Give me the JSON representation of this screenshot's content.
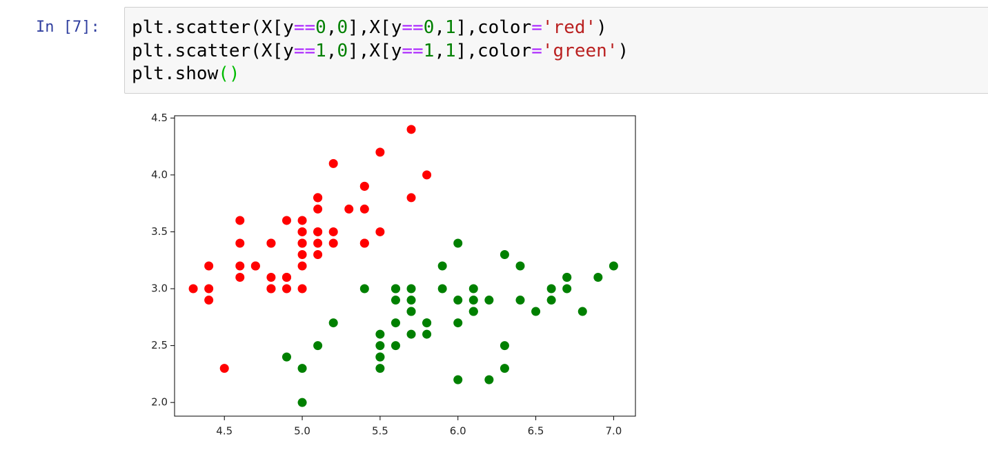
{
  "notebook": {
    "prompt": "In [7]:",
    "code": [
      [
        {
          "text": "plt.scatter(X[y",
          "color": "#000000"
        },
        {
          "text": "==",
          "color": "#aa22ff"
        },
        {
          "text": "0",
          "color": "#008000"
        },
        {
          "text": ",",
          "color": "#000000"
        },
        {
          "text": "0",
          "color": "#008000"
        },
        {
          "text": "],X[y",
          "color": "#000000"
        },
        {
          "text": "==",
          "color": "#aa22ff"
        },
        {
          "text": "0",
          "color": "#008000"
        },
        {
          "text": ",",
          "color": "#000000"
        },
        {
          "text": "1",
          "color": "#008000"
        },
        {
          "text": "],color",
          "color": "#000000"
        },
        {
          "text": "=",
          "color": "#aa22ff"
        },
        {
          "text": "'red'",
          "color": "#ba2121"
        },
        {
          "text": ")",
          "color": "#000000"
        }
      ],
      [
        {
          "text": "plt.scatter(X[y",
          "color": "#000000"
        },
        {
          "text": "==",
          "color": "#aa22ff"
        },
        {
          "text": "1",
          "color": "#008000"
        },
        {
          "text": ",",
          "color": "#000000"
        },
        {
          "text": "0",
          "color": "#008000"
        },
        {
          "text": "],X[y",
          "color": "#000000"
        },
        {
          "text": "==",
          "color": "#aa22ff"
        },
        {
          "text": "1",
          "color": "#008000"
        },
        {
          "text": ",",
          "color": "#000000"
        },
        {
          "text": "1",
          "color": "#008000"
        },
        {
          "text": "],color",
          "color": "#000000"
        },
        {
          "text": "=",
          "color": "#aa22ff"
        },
        {
          "text": "'green'",
          "color": "#ba2121"
        },
        {
          "text": ")",
          "color": "#000000"
        }
      ],
      [
        {
          "text": "plt.show",
          "color": "#000000"
        },
        {
          "text": "()",
          "color": "#00bb00"
        }
      ]
    ]
  },
  "chart_data": {
    "type": "scatter",
    "xlim": [
      4.18,
      7.14
    ],
    "ylim": [
      1.88,
      4.52
    ],
    "xticks": [
      4.5,
      {
        "value": 5,
        "label": "5.0"
      },
      5.5,
      {
        "value": 6,
        "label": "6.0"
      },
      6.5,
      {
        "value": 7,
        "label": "7.0"
      }
    ],
    "yticks": [
      {
        "value": 2,
        "label": "2.0"
      },
      2.5,
      {
        "value": 3,
        "label": "3.0"
      },
      3.5,
      {
        "value": 4,
        "label": "4.0"
      },
      4.5
    ],
    "grid": false,
    "series": [
      {
        "color": "#ff0000",
        "x": [
          5.1,
          4.9,
          4.7,
          4.6,
          5.0,
          5.4,
          4.6,
          5.0,
          4.4,
          4.9,
          5.4,
          4.8,
          4.8,
          4.3,
          5.8,
          5.7,
          5.4,
          5.1,
          5.7,
          5.1,
          5.4,
          5.1,
          4.6,
          5.1,
          4.8,
          5.0,
          5.0,
          5.2,
          5.2,
          4.7,
          4.8,
          5.4,
          5.2,
          5.5,
          4.9,
          5.0,
          5.5,
          4.9,
          4.4,
          5.1,
          5.0,
          4.5,
          4.4,
          5.0,
          5.1,
          4.8,
          5.1,
          4.6,
          5.3,
          5.0
        ],
        "values": [
          3.5,
          3.0,
          3.2,
          3.1,
          3.6,
          3.9,
          3.4,
          3.4,
          2.9,
          3.1,
          3.7,
          3.4,
          3.0,
          3.0,
          4.0,
          4.4,
          3.9,
          3.5,
          3.8,
          3.8,
          3.4,
          3.7,
          3.6,
          3.3,
          3.4,
          3.0,
          3.4,
          3.5,
          3.4,
          3.2,
          3.1,
          3.4,
          4.1,
          4.2,
          3.1,
          3.2,
          3.5,
          3.6,
          3.0,
          3.4,
          3.5,
          2.3,
          3.2,
          3.5,
          3.8,
          3.0,
          3.8,
          3.2,
          3.7,
          3.3
        ]
      },
      {
        "color": "#008000",
        "x": [
          7.0,
          6.4,
          6.9,
          5.5,
          6.5,
          5.7,
          6.3,
          4.9,
          6.6,
          5.2,
          5.0,
          5.9,
          6.0,
          6.1,
          5.6,
          6.7,
          5.6,
          5.8,
          6.2,
          5.6,
          5.9,
          6.1,
          6.3,
          6.1,
          6.4,
          6.6,
          6.8,
          6.7,
          6.0,
          5.7,
          5.5,
          5.5,
          5.8,
          6.0,
          5.4,
          6.0,
          6.7,
          6.3,
          5.6,
          5.5,
          5.5,
          6.1,
          5.8,
          5.0,
          5.6,
          5.7,
          5.7,
          6.2,
          5.1,
          5.7
        ],
        "values": [
          3.2,
          3.2,
          3.1,
          2.3,
          2.8,
          2.8,
          3.3,
          2.4,
          2.9,
          2.7,
          2.0,
          3.0,
          2.2,
          2.9,
          2.9,
          3.1,
          3.0,
          2.7,
          2.2,
          2.5,
          3.2,
          2.8,
          2.5,
          2.8,
          2.9,
          3.0,
          2.8,
          3.0,
          2.9,
          2.6,
          2.4,
          2.4,
          2.7,
          2.7,
          3.0,
          3.4,
          3.1,
          2.3,
          3.0,
          2.5,
          2.6,
          3.0,
          2.6,
          2.3,
          2.7,
          3.0,
          2.9,
          2.9,
          2.5,
          2.8
        ]
      }
    ]
  }
}
